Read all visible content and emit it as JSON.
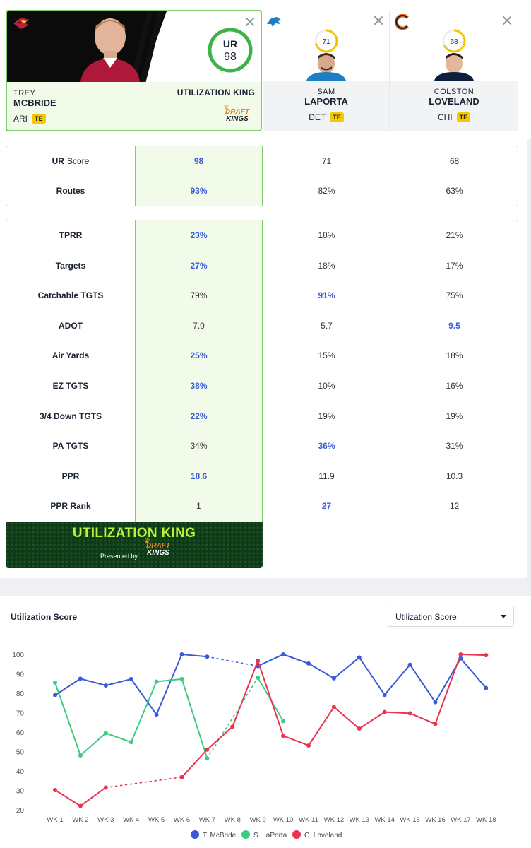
{
  "players": [
    {
      "first": "TREY",
      "last": "MCBRIDE",
      "team": "ARI",
      "pos": "TE",
      "score": "98",
      "tag": "UTILIZATION KING",
      "sponsor_top": "DRAFT",
      "sponsor_bottom": "KINGS"
    },
    {
      "first": "SAM",
      "last": "LAPORTA",
      "team": "DET",
      "pos": "TE",
      "score": "71"
    },
    {
      "first": "COLSTON",
      "last": "LOVELAND",
      "team": "CHI",
      "pos": "TE",
      "score": "68"
    }
  ],
  "ur_logo": "UR",
  "ur_score_progress": {
    "mcbride": 0.98,
    "laporta": 0.71,
    "loveland": 0.68
  },
  "summary_rows": [
    {
      "label": "Score",
      "values": [
        "98",
        "71",
        "68"
      ],
      "best": [
        true,
        false,
        false
      ]
    },
    {
      "label": "Routes",
      "values": [
        "93%",
        "82%",
        "63%"
      ],
      "best": [
        true,
        false,
        false
      ]
    }
  ],
  "detail_rows": [
    {
      "label": "TPRR",
      "values": [
        "23%",
        "18%",
        "21%"
      ],
      "best": [
        true,
        false,
        false
      ]
    },
    {
      "label": "Targets",
      "values": [
        "27%",
        "18%",
        "17%"
      ],
      "best": [
        true,
        false,
        false
      ]
    },
    {
      "label": "Catchable TGTS",
      "values": [
        "79%",
        "91%",
        "75%"
      ],
      "best": [
        false,
        true,
        false
      ]
    },
    {
      "label": "ADOT",
      "values": [
        "7.0",
        "5.7",
        "9.5"
      ],
      "best": [
        false,
        false,
        true
      ]
    },
    {
      "label": "Air Yards",
      "values": [
        "25%",
        "15%",
        "18%"
      ],
      "best": [
        true,
        false,
        false
      ]
    },
    {
      "label": "EZ TGTS",
      "values": [
        "38%",
        "10%",
        "16%"
      ],
      "best": [
        true,
        false,
        false
      ]
    },
    {
      "label": "3/4 Down TGTS",
      "values": [
        "22%",
        "19%",
        "19%"
      ],
      "best": [
        true,
        false,
        false
      ]
    },
    {
      "label": "PA TGTS",
      "values": [
        "34%",
        "36%",
        "31%"
      ],
      "best": [
        false,
        true,
        false
      ]
    },
    {
      "label": "PPR",
      "values": [
        "18.6",
        "11.9",
        "10.3"
      ],
      "best": [
        true,
        false,
        false
      ]
    },
    {
      "label": "PPR Rank",
      "values": [
        "1",
        "27",
        "12"
      ],
      "best": [
        false,
        true,
        false
      ]
    }
  ],
  "banner": {
    "title": "UTILIZATION KING",
    "presented": "Presented by",
    "sponsor_top": "DRAFT",
    "sponsor_bottom": "KINGS"
  },
  "chart": {
    "title": "Utilization Score",
    "select_value": "Utilization Score"
  },
  "colors": {
    "mcbride": "#3a5bd9",
    "laporta": "#3dcc80",
    "loveland": "#e8344e",
    "accent_green": "#7fce6b",
    "best_blue": "#3a5bd9",
    "te_badge": "#f5c800"
  },
  "chart_data": {
    "type": "line",
    "categories": [
      "WK 1",
      "WK 2",
      "WK 3",
      "WK 4",
      "WK 5",
      "WK 6",
      "WK 7",
      "WK 8",
      "WK 9",
      "WK 10",
      "WK 11",
      "WK 12",
      "WK 13",
      "WK 14",
      "WK 15",
      "WK 16",
      "WK 17",
      "WK 18"
    ],
    "yticks": [
      20,
      30,
      40,
      50,
      60,
      70,
      80,
      90,
      100
    ],
    "ylim": [
      20,
      100
    ],
    "grid": false,
    "legend": "bottom-center",
    "series": [
      {
        "name": "T. McBride",
        "color": "#3a5bd9",
        "values": [
          79,
          87.5,
          84,
          87.3,
          69,
          100,
          98.8,
          null,
          94,
          100,
          95.3,
          87.7,
          98.4,
          79.2,
          94.7,
          75.4,
          97.9,
          82.7
        ]
      },
      {
        "name": "S. LaPorta",
        "color": "#3dcc80",
        "values": [
          85.5,
          48,
          59.5,
          54.8,
          86,
          87.3,
          46.5,
          null,
          88,
          65.7,
          null,
          null,
          null,
          null,
          null,
          null,
          null,
          null
        ]
      },
      {
        "name": "C. Loveland",
        "color": "#e8344e",
        "values": [
          30.2,
          22,
          31.5,
          null,
          null,
          36.8,
          51,
          62.8,
          96.7,
          58.1,
          53.1,
          72.9,
          61.8,
          70.3,
          69.7,
          64.2,
          100,
          99.6
        ]
      }
    ]
  }
}
